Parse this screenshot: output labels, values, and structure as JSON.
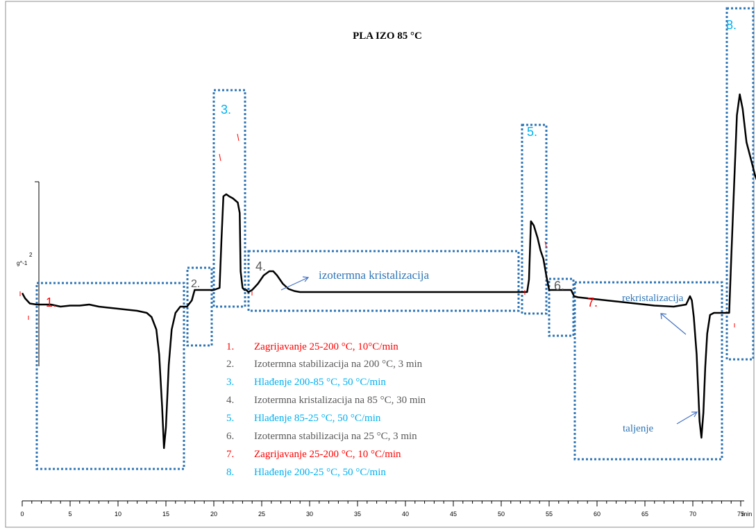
{
  "chart_data": {
    "type": "line",
    "title": "PLA IZO 85 °C",
    "ylabel_top": "2",
    "ylabel": "g^-1",
    "xlabel": "min",
    "xlim": [
      0,
      77
    ],
    "x_ticks": [
      0,
      5,
      10,
      15,
      20,
      25,
      30,
      35,
      40,
      45,
      50,
      55,
      60,
      65,
      70,
      75
    ],
    "series": [
      {
        "x": [
          0,
          0.3,
          0.8,
          1.5,
          3,
          4,
          5,
          6,
          7,
          8,
          9,
          10,
          11,
          12,
          13,
          13.5,
          14,
          14.3,
          14.6,
          14.8,
          15.0,
          15.3,
          15.6,
          16,
          16.5,
          17.2,
          17.7,
          18,
          19,
          20,
          20.6,
          20.8,
          21.0,
          21.3,
          21.6,
          22,
          22.5,
          22.7,
          22.8,
          23.0,
          23.2,
          23.4,
          23.6,
          24,
          24.6,
          25.2,
          25.8,
          26.2,
          26.6,
          27.2,
          27.8,
          28.4,
          29,
          30,
          32,
          35,
          40,
          45,
          50,
          52.5,
          52.7,
          52.9,
          53.1,
          53.4,
          53.8,
          54.1,
          54.4,
          54.7,
          55,
          56,
          57.3,
          57.6,
          58,
          60,
          62,
          64,
          66,
          68,
          69.3,
          69.7,
          69.9,
          70.1,
          70.4,
          70.7,
          70.9,
          71.1,
          71.3,
          71.5,
          71.8,
          72.2,
          73.5,
          73.8,
          74.0,
          74.3,
          74.6,
          74.9,
          75.2,
          75.6,
          76,
          76.5,
          77
        ],
        "y": [
          -0.05,
          -0.3,
          -0.55,
          -0.6,
          -0.6,
          -0.7,
          -0.65,
          -0.65,
          -0.6,
          -0.7,
          -0.75,
          -0.8,
          -0.85,
          -0.9,
          -1.0,
          -1.2,
          -1.8,
          -3.0,
          -5.5,
          -7.5,
          -6.5,
          -3.5,
          -1.8,
          -1.0,
          -0.7,
          -0.7,
          -0.4,
          0.1,
          0.1,
          0.1,
          0.2,
          2.5,
          4.6,
          4.7,
          4.6,
          4.5,
          4.3,
          3.8,
          1.0,
          0.2,
          0.1,
          0.1,
          0.0,
          0.1,
          0.4,
          0.8,
          1.0,
          1.0,
          0.8,
          0.4,
          0.15,
          0.05,
          0.0,
          0.0,
          0.0,
          0.0,
          0.0,
          0.0,
          0.0,
          0.0,
          0.0,
          0.6,
          3.4,
          3.2,
          2.6,
          2.0,
          1.6,
          0.8,
          0.1,
          0.1,
          0.1,
          -0.2,
          -0.25,
          -0.35,
          -0.45,
          -0.55,
          -0.65,
          -0.7,
          -0.6,
          -0.2,
          -0.4,
          -1.2,
          -3.0,
          -6.2,
          -7.0,
          -5.8,
          -3.6,
          -2.0,
          -1.1,
          -1.0,
          -1.0,
          -1.0,
          1.5,
          5.0,
          8.5,
          9.5,
          8.8,
          7.2,
          6.5,
          5.6,
          5.0
        ]
      }
    ],
    "grid": false
  },
  "annotations": {
    "n1": "1.",
    "n2": "2.",
    "n3": "3.",
    "n4": "4.",
    "n5": "5.",
    "n6": "6.",
    "n7": "7.",
    "n8": "8.",
    "izotermna": "izotermna kristalizacija",
    "rekristalizacija": "rekristalizacija",
    "taljenje": "taljenje"
  },
  "legend": [
    {
      "num": "1.",
      "text": "Zagrijavanje  25-200 °C, 10°C/min",
      "color": "#ff0000"
    },
    {
      "num": "2.",
      "text": "Izotermna stabilizacija  na  200 °C, 3 min",
      "color": "#595959"
    },
    {
      "num": "3.",
      "text": "Hlađenje  200-85  °C, 50 °C/min",
      "color": "#00b0f0"
    },
    {
      "num": "4.",
      "text": "Izotermna kristalizacija  na  85 °C, 30 min",
      "color": "#595959"
    },
    {
      "num": "5.",
      "text": "Hlađenje  85-25 °C, 50 °C/min",
      "color": "#00b0f0"
    },
    {
      "num": "6.",
      "text": "Izotermna stabilizacija  na  25 °C, 3 min",
      "color": "#595959"
    },
    {
      "num": "7.",
      "text": "Zagrijavanje  25-200 °C, 10 °C/min",
      "color": "#ff0000"
    },
    {
      "num": "8.",
      "text": "Hlađenje  200-25  °C, 50 °C/min",
      "color": "#00b0f0"
    }
  ],
  "colors": {
    "curve": "#000000",
    "box": "#2e75b6",
    "arrow": "#4472c4",
    "label_red": "#ff0000",
    "label_gray": "#595959",
    "label_cyan": "#00b0f0"
  }
}
